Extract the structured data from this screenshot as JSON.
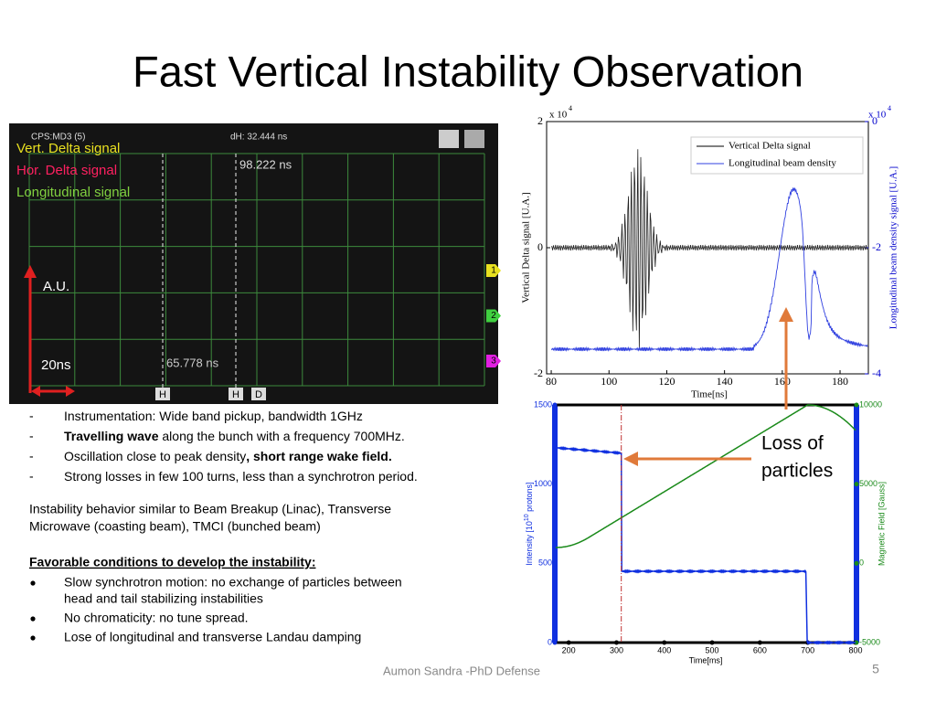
{
  "title": "Fast Vertical Instability Observation",
  "scope": {
    "header_left": "CPS:MD3 (5)",
    "header_mid": "dH: 32.444 ns",
    "cursor_top": "98.222 ns",
    "cursor_bottom": "65.778 ns",
    "legend": [
      "Vert. Delta signal",
      "Hor. Delta signal",
      "Longitudinal signal"
    ],
    "y_label": "A.U.",
    "x_label": "20ns",
    "markers": [
      "1",
      "2",
      "3"
    ],
    "cursor_tags": [
      "H",
      "H",
      "D"
    ]
  },
  "plot1": {
    "x_label": "Time[ns]",
    "y_label": "Vertical Delta signal [U.A.]",
    "y2_label": "Longitudinal beam density signal [U.A.]",
    "y_scale": "x 10",
    "y_scale_power": 4,
    "y2_scale": "x 10",
    "y2_scale_power": 4,
    "legend": [
      "Vertical Delta signal",
      "Longitudinal beam density"
    ],
    "xlim": [
      78.4,
      189.8
    ],
    "xticks": [
      80,
      100,
      120,
      140,
      160,
      180
    ],
    "ylim": [
      -2,
      2
    ],
    "yticks": [
      -2,
      0,
      2
    ],
    "y2lim": [
      -4,
      0
    ],
    "y2ticks": [
      -4,
      -2,
      0
    ]
  },
  "plot2": {
    "x_label": "Time[ms]",
    "y_label": "Intensity [10",
    "y_label_power": 10,
    "y_label_end": " protons]",
    "y2_label": "Magnetic Field [Gauss]",
    "xlim": [
      171,
      802
    ],
    "xticks": [
      200,
      300,
      400,
      500,
      600,
      700,
      800
    ],
    "ylim": [
      0,
      1500
    ],
    "yticks": [
      0,
      500,
      1000,
      1500
    ],
    "y2lim": [
      -5000,
      10000
    ],
    "y2ticks": [
      -5000,
      0,
      5000,
      10000
    ]
  },
  "annotation": [
    "Loss of",
    "particles"
  ],
  "bullets1": [
    [
      {
        "text": "Instrumentation: Wide band pickup, bandwidth 1GHz",
        "bold": false
      }
    ],
    [
      {
        "text": "Travelling wave",
        "bold": true
      },
      {
        "text": " along the bunch with a frequency 700MHz.",
        "bold": false
      }
    ],
    [
      {
        "text": "Oscillation close to peak density",
        "bold": false
      },
      {
        "text": ", short range wake field.",
        "bold": true
      }
    ],
    [
      {
        "text": "Strong losses in few 100 turns, less than a synchrotron period.",
        "bold": false
      }
    ]
  ],
  "paragraph": [
    "Instability behavior similar to Beam Breakup (Linac), Transverse",
    "Microwave (coasting beam), TMCI (bunched beam)"
  ],
  "heading": "Favorable conditions to develop the instability:",
  "bullets2": [
    [
      "Slow synchrotron motion: no exchange of particles between",
      "head and tail stabilizing instabilities"
    ],
    [
      "No chromaticity: no tune spread."
    ],
    [
      "Lose of longitudinal and transverse Landau damping"
    ]
  ],
  "footer": "Aumon Sandra -PhD Defense",
  "page_number": 5
}
